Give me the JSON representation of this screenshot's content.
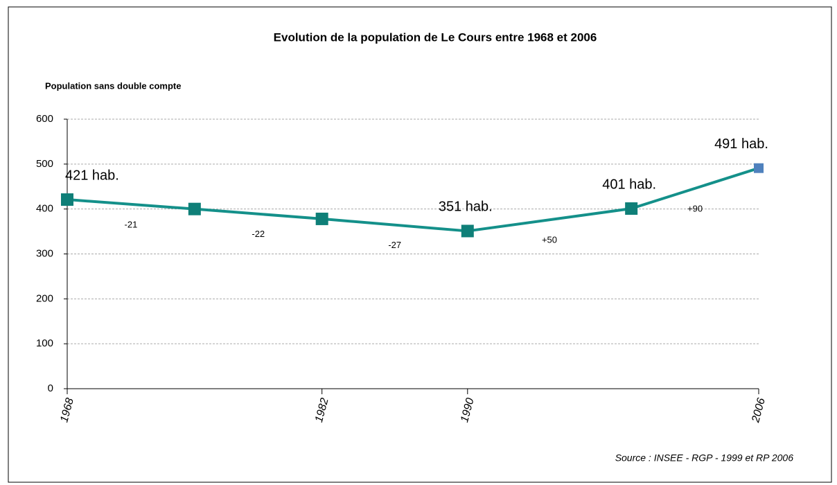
{
  "chart_data": {
    "type": "line",
    "title": "Evolution de la population de Le Cours entre 1968  et 2006",
    "y_label": "Population sans double compte",
    "source": "Source : INSEE - RGP -  1999 et RP 2006",
    "x": [
      1968,
      1975,
      1982,
      1990,
      1999,
      2006
    ],
    "series": [
      {
        "name": "Population",
        "color": "#14908a",
        "marker_color": "#0f7f78",
        "last_marker_color": "#4f81bd",
        "values": [
          421,
          400,
          378,
          351,
          401,
          491
        ],
        "value_labels": [
          "421 hab.",
          null,
          null,
          "351 hab.",
          "401 hab.",
          "491 hab."
        ]
      }
    ],
    "annotations": [
      "-21",
      "-22",
      "-27",
      "+50",
      "+90"
    ],
    "annotation_color": "#c00000",
    "xlim": [
      1968,
      2006
    ],
    "xticks": [
      1968,
      1982,
      1990,
      2006
    ],
    "ylim": [
      0,
      600
    ],
    "yticks": [
      0,
      100,
      200,
      300,
      400,
      500,
      600
    ],
    "grid": true
  }
}
